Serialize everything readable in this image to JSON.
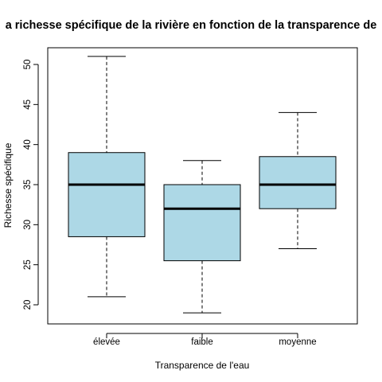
{
  "chart_data": {
    "type": "boxplot",
    "title": "a richesse spécifique de la rivière en fonction de la transparence de",
    "xlabel": "Transparence de l'eau",
    "ylabel": "Richesse spécifique",
    "ylim": [
      18,
      52
    ],
    "yticks": [
      20,
      25,
      30,
      35,
      40,
      45,
      50
    ],
    "categories": [
      "élevée",
      "faible",
      "moyenne"
    ],
    "boxes": [
      {
        "label": "élevée",
        "min": 21,
        "q1": 28.5,
        "median": 35,
        "q3": 39,
        "max": 51
      },
      {
        "label": "faible",
        "min": 19,
        "q1": 25.5,
        "median": 32,
        "q3": 35,
        "max": 38
      },
      {
        "label": "moyenne",
        "min": 27,
        "q1": 32,
        "median": 35,
        "q3": 38.5,
        "max": 44
      }
    ],
    "box_color": "#add8e6",
    "grid": false,
    "legend": "none"
  }
}
